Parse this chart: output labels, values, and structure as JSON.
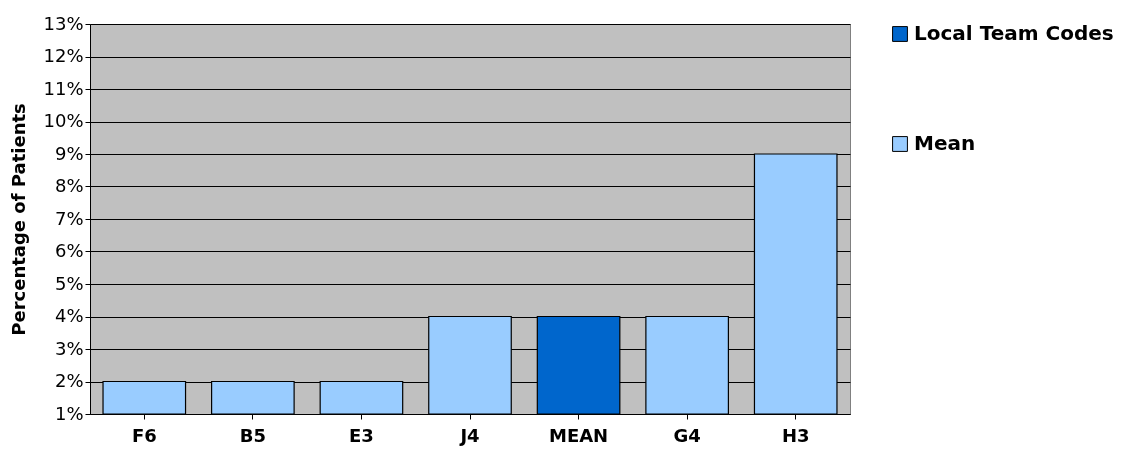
{
  "chart_data": {
    "type": "bar",
    "ylabel": "Percentage of Patients",
    "categories": [
      "F6",
      "B5",
      "E3",
      "J4",
      "MEAN",
      "G4",
      "H3"
    ],
    "series": [
      {
        "name": "Local Team Codes",
        "color": "#0066cc",
        "values": [
          null,
          null,
          null,
          null,
          4,
          null,
          null
        ]
      },
      {
        "name": "Mean",
        "color": "#99ccff",
        "values": [
          2,
          2,
          2,
          4,
          null,
          4,
          9
        ]
      }
    ],
    "ylim": [
      1,
      13
    ],
    "yticks": [
      {
        "value": 1,
        "label": "1%"
      },
      {
        "value": 2,
        "label": "2%"
      },
      {
        "value": 3,
        "label": "3%"
      },
      {
        "value": 4,
        "label": "4%"
      },
      {
        "value": 5,
        "label": "5%"
      },
      {
        "value": 6,
        "label": "6%"
      },
      {
        "value": 7,
        "label": "7%"
      },
      {
        "value": 8,
        "label": "8%"
      },
      {
        "value": 9,
        "label": "9%"
      },
      {
        "value": 10,
        "label": "10%"
      },
      {
        "value": 11,
        "label": "11%"
      },
      {
        "value": 12,
        "label": "12%"
      },
      {
        "value": 13,
        "label": "13%"
      }
    ],
    "grid": "y",
    "legend": "right"
  }
}
